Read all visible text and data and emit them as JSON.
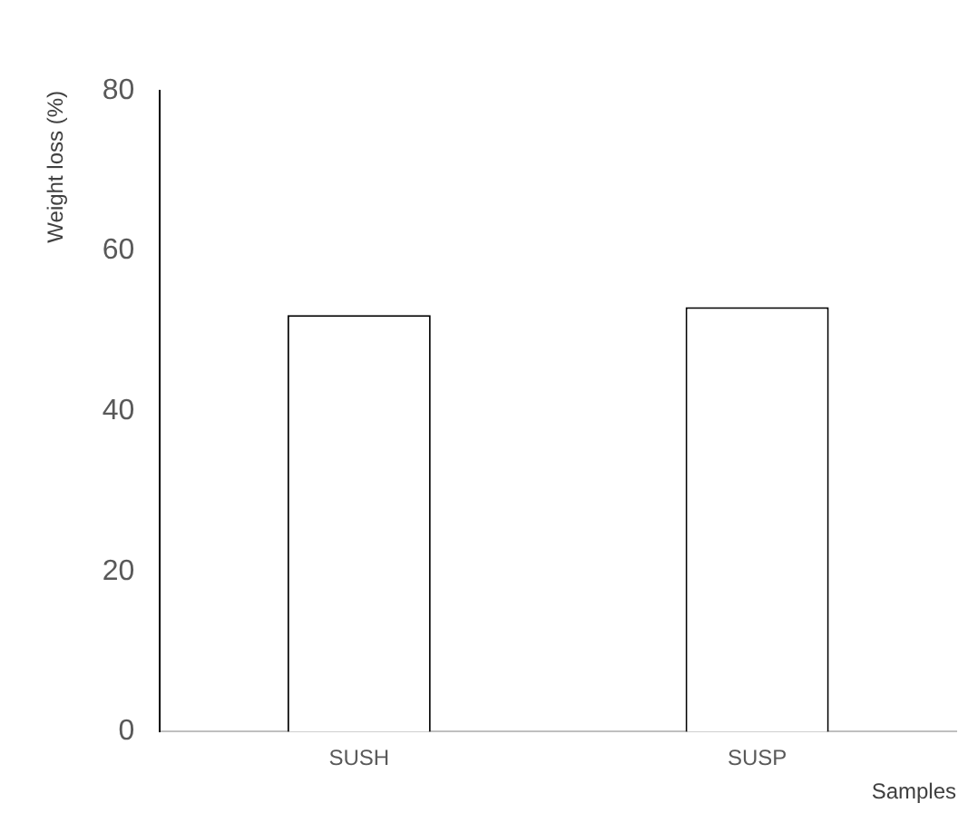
{
  "chart_data": {
    "type": "bar",
    "xlabel": "Samples",
    "ylabel": "Weight loss (%)",
    "categories": [
      "SUSH",
      "SUSP"
    ],
    "series": [
      {
        "color": "#ffffff",
        "values": [
          52,
          53
        ]
      }
    ],
    "ylim": [
      0,
      80
    ],
    "yticks": [
      0,
      20,
      40,
      60,
      80
    ],
    "grid": false,
    "legend": false
  }
}
